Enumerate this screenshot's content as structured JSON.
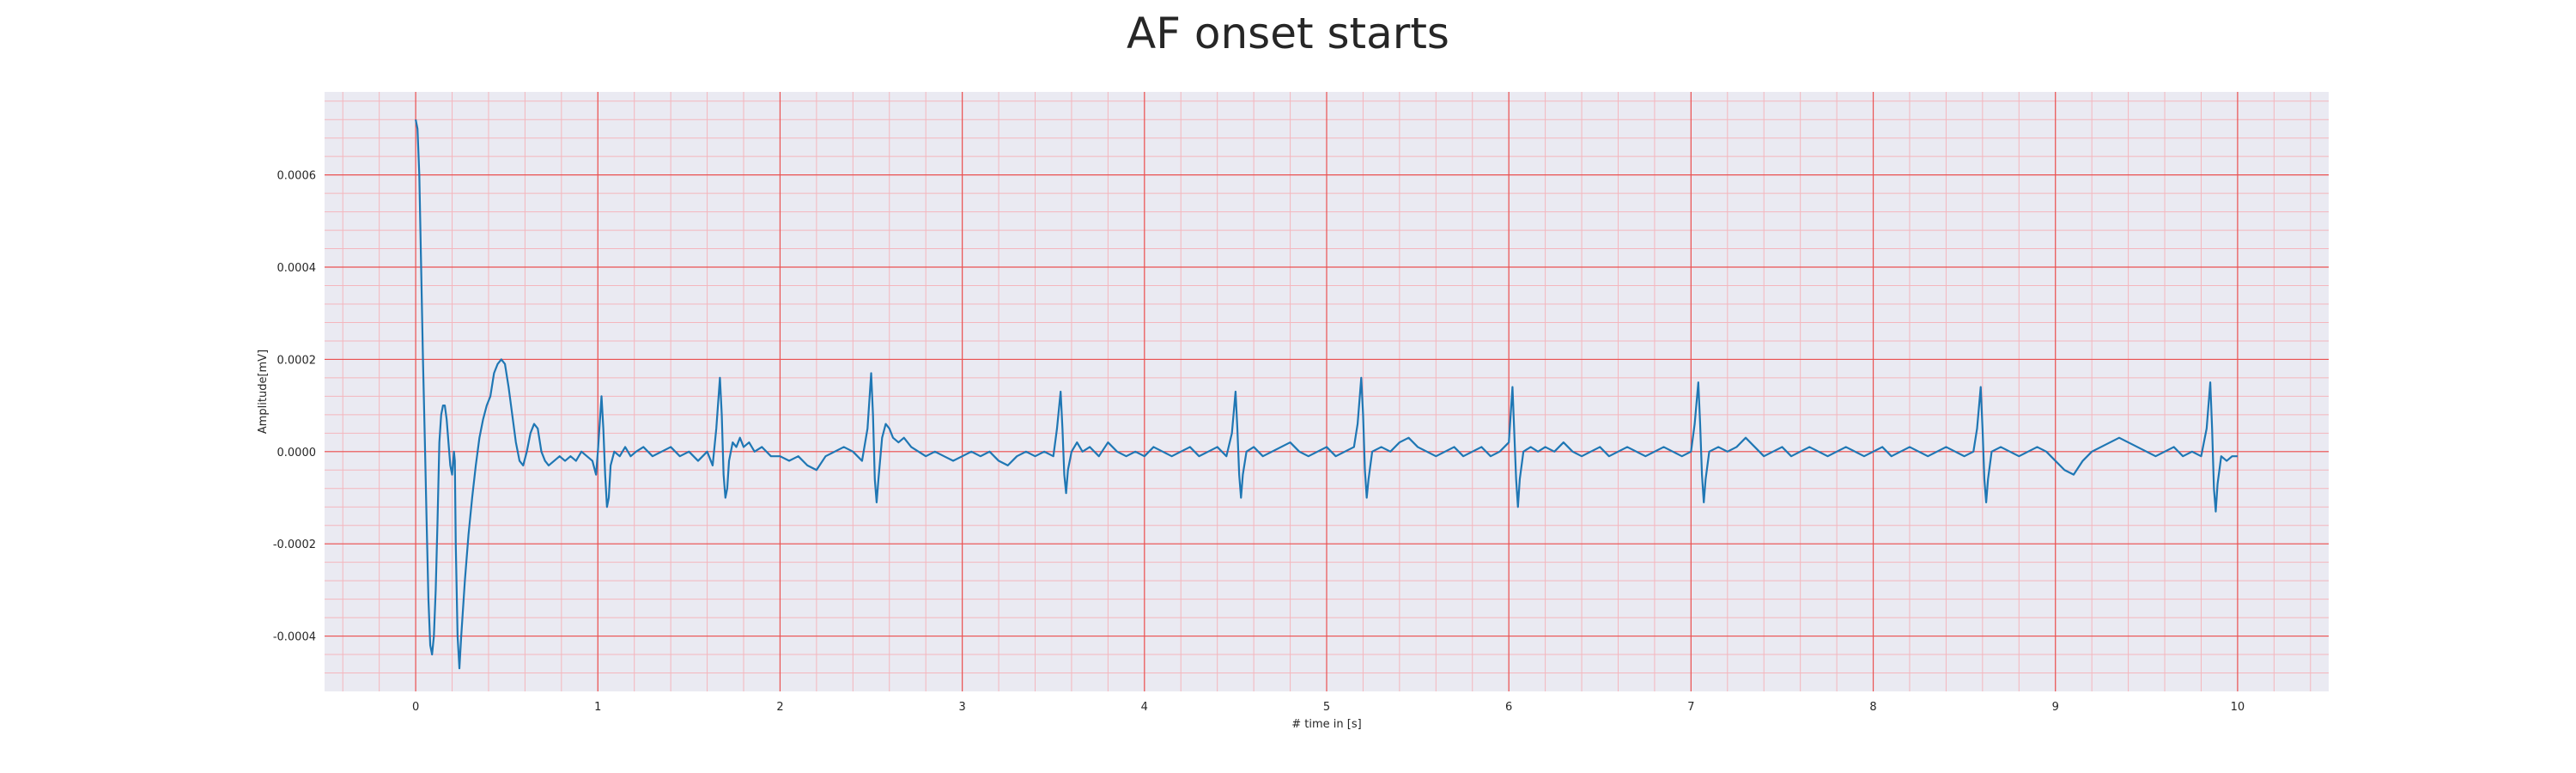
{
  "chart_data": {
    "type": "line",
    "title": "AF onset starts",
    "xlabel": "# time in [s]",
    "ylabel": "Amplitude[mV]",
    "xlim": [
      -0.5,
      10.5
    ],
    "ylim": [
      -0.00052,
      0.00078
    ],
    "x_ticks": [
      0,
      1,
      2,
      3,
      4,
      5,
      6,
      7,
      8,
      9,
      10
    ],
    "x_tick_labels": [
      "0",
      "1",
      "2",
      "3",
      "4",
      "5",
      "6",
      "7",
      "8",
      "9",
      "10"
    ],
    "y_ticks": [
      -0.0004,
      -0.0002,
      0.0,
      0.0002,
      0.0004,
      0.0006
    ],
    "y_tick_labels": [
      "-0.0004",
      "-0.0002",
      "0.0000",
      "0.0002",
      "0.0004",
      "0.0006"
    ],
    "grid": true,
    "minor_grid": true,
    "series": [
      {
        "color": "#1f77b4",
        "points": [
          [
            0.0,
            0.00072
          ],
          [
            0.01,
            0.0007
          ],
          [
            0.02,
            0.0006
          ],
          [
            0.03,
            0.0004
          ],
          [
            0.04,
            0.0002
          ],
          [
            0.05,
            3e-05
          ],
          [
            0.06,
            -0.00015
          ],
          [
            0.07,
            -0.00032
          ],
          [
            0.08,
            -0.00042
          ],
          [
            0.09,
            -0.00044
          ],
          [
            0.1,
            -0.0004
          ],
          [
            0.11,
            -0.0003
          ],
          [
            0.12,
            -0.00015
          ],
          [
            0.13,
            2e-05
          ],
          [
            0.14,
            8e-05
          ],
          [
            0.15,
            0.0001
          ],
          [
            0.16,
            0.0001
          ],
          [
            0.17,
            7e-05
          ],
          [
            0.18,
            2e-05
          ],
          [
            0.19,
            -3e-05
          ],
          [
            0.2,
            -5e-05
          ],
          [
            0.21,
            0.0
          ],
          [
            0.215,
            -2e-05
          ],
          [
            0.22,
            -0.0002
          ],
          [
            0.23,
            -0.0004
          ],
          [
            0.24,
            -0.00047
          ],
          [
            0.25,
            -0.0004
          ],
          [
            0.27,
            -0.00028
          ],
          [
            0.29,
            -0.00018
          ],
          [
            0.31,
            -0.0001
          ],
          [
            0.33,
            -3e-05
          ],
          [
            0.35,
            3e-05
          ],
          [
            0.37,
            7e-05
          ],
          [
            0.39,
            0.0001
          ],
          [
            0.41,
            0.00012
          ],
          [
            0.43,
            0.00017
          ],
          [
            0.45,
            0.00019
          ],
          [
            0.47,
            0.0002
          ],
          [
            0.49,
            0.00019
          ],
          [
            0.51,
            0.00014
          ],
          [
            0.53,
            8e-05
          ],
          [
            0.55,
            2e-05
          ],
          [
            0.57,
            -2e-05
          ],
          [
            0.59,
            -3e-05
          ],
          [
            0.61,
            0.0
          ],
          [
            0.63,
            4e-05
          ],
          [
            0.65,
            6e-05
          ],
          [
            0.67,
            5e-05
          ],
          [
            0.69,
            0.0
          ],
          [
            0.71,
            -2e-05
          ],
          [
            0.73,
            -3e-05
          ],
          [
            0.76,
            -2e-05
          ],
          [
            0.79,
            -1e-05
          ],
          [
            0.82,
            -2e-05
          ],
          [
            0.85,
            -1e-05
          ],
          [
            0.88,
            -2e-05
          ],
          [
            0.91,
            0.0
          ],
          [
            0.94,
            -1e-05
          ],
          [
            0.97,
            -2e-05
          ],
          [
            0.99,
            -5e-05
          ],
          [
            1.0,
            0.0
          ],
          [
            1.02,
            0.00012
          ],
          [
            1.03,
            5e-05
          ],
          [
            1.04,
            -5e-05
          ],
          [
            1.05,
            -0.00012
          ],
          [
            1.06,
            -0.0001
          ],
          [
            1.07,
            -3e-05
          ],
          [
            1.09,
            0.0
          ],
          [
            1.12,
            -1e-05
          ],
          [
            1.15,
            1e-05
          ],
          [
            1.18,
            -1e-05
          ],
          [
            1.21,
            0.0
          ],
          [
            1.25,
            1e-05
          ],
          [
            1.3,
            -1e-05
          ],
          [
            1.35,
            0.0
          ],
          [
            1.4,
            1e-05
          ],
          [
            1.45,
            -1e-05
          ],
          [
            1.5,
            0.0
          ],
          [
            1.55,
            -2e-05
          ],
          [
            1.6,
            0.0
          ],
          [
            1.63,
            -3e-05
          ],
          [
            1.65,
            5e-05
          ],
          [
            1.67,
            0.00016
          ],
          [
            1.68,
            8e-05
          ],
          [
            1.69,
            -5e-05
          ],
          [
            1.7,
            -0.0001
          ],
          [
            1.71,
            -8e-05
          ],
          [
            1.72,
            -2e-05
          ],
          [
            1.74,
            2e-05
          ],
          [
            1.76,
            1e-05
          ],
          [
            1.78,
            3e-05
          ],
          [
            1.8,
            1e-05
          ],
          [
            1.83,
            2e-05
          ],
          [
            1.86,
            0.0
          ],
          [
            1.9,
            1e-05
          ],
          [
            1.95,
            -1e-05
          ],
          [
            2.0,
            -1e-05
          ],
          [
            2.05,
            -2e-05
          ],
          [
            2.1,
            -1e-05
          ],
          [
            2.15,
            -3e-05
          ],
          [
            2.2,
            -4e-05
          ],
          [
            2.25,
            -1e-05
          ],
          [
            2.3,
            0.0
          ],
          [
            2.35,
            1e-05
          ],
          [
            2.4,
            0.0
          ],
          [
            2.45,
            -2e-05
          ],
          [
            2.48,
            5e-05
          ],
          [
            2.5,
            0.00017
          ],
          [
            2.51,
            8e-05
          ],
          [
            2.52,
            -6e-05
          ],
          [
            2.53,
            -0.00011
          ],
          [
            2.54,
            -6e-05
          ],
          [
            2.56,
            3e-05
          ],
          [
            2.58,
            6e-05
          ],
          [
            2.6,
            5e-05
          ],
          [
            2.62,
            3e-05
          ],
          [
            2.65,
            2e-05
          ],
          [
            2.68,
            3e-05
          ],
          [
            2.72,
            1e-05
          ],
          [
            2.76,
            0.0
          ],
          [
            2.8,
            -1e-05
          ],
          [
            2.85,
            0.0
          ],
          [
            2.9,
            -1e-05
          ],
          [
            2.95,
            -2e-05
          ],
          [
            3.0,
            -1e-05
          ],
          [
            3.05,
            0.0
          ],
          [
            3.1,
            -1e-05
          ],
          [
            3.15,
            0.0
          ],
          [
            3.2,
            -2e-05
          ],
          [
            3.25,
            -3e-05
          ],
          [
            3.3,
            -1e-05
          ],
          [
            3.35,
            0.0
          ],
          [
            3.4,
            -1e-05
          ],
          [
            3.45,
            0.0
          ],
          [
            3.5,
            -1e-05
          ],
          [
            3.52,
            5e-05
          ],
          [
            3.54,
            0.00013
          ],
          [
            3.55,
            5e-05
          ],
          [
            3.56,
            -5e-05
          ],
          [
            3.57,
            -9e-05
          ],
          [
            3.58,
            -4e-05
          ],
          [
            3.6,
            0.0
          ],
          [
            3.63,
            2e-05
          ],
          [
            3.66,
            0.0
          ],
          [
            3.7,
            1e-05
          ],
          [
            3.75,
            -1e-05
          ],
          [
            3.8,
            2e-05
          ],
          [
            3.85,
            0.0
          ],
          [
            3.9,
            -1e-05
          ],
          [
            3.95,
            0.0
          ],
          [
            4.0,
            -1e-05
          ],
          [
            4.05,
            1e-05
          ],
          [
            4.1,
            0.0
          ],
          [
            4.15,
            -1e-05
          ],
          [
            4.2,
            0.0
          ],
          [
            4.25,
            1e-05
          ],
          [
            4.3,
            -1e-05
          ],
          [
            4.35,
            0.0
          ],
          [
            4.4,
            1e-05
          ],
          [
            4.45,
            -1e-05
          ],
          [
            4.48,
            4e-05
          ],
          [
            4.5,
            0.00013
          ],
          [
            4.51,
            5e-05
          ],
          [
            4.52,
            -5e-05
          ],
          [
            4.53,
            -0.0001
          ],
          [
            4.54,
            -5e-05
          ],
          [
            4.56,
            0.0
          ],
          [
            4.6,
            1e-05
          ],
          [
            4.65,
            -1e-05
          ],
          [
            4.7,
            0.0
          ],
          [
            4.75,
            1e-05
          ],
          [
            4.8,
            2e-05
          ],
          [
            4.85,
            0.0
          ],
          [
            4.9,
            -1e-05
          ],
          [
            4.95,
            0.0
          ],
          [
            5.0,
            1e-05
          ],
          [
            5.05,
            -1e-05
          ],
          [
            5.1,
            0.0
          ],
          [
            5.15,
            1e-05
          ],
          [
            5.17,
            6e-05
          ],
          [
            5.19,
            0.00016
          ],
          [
            5.2,
            8e-05
          ],
          [
            5.21,
            -4e-05
          ],
          [
            5.22,
            -0.0001
          ],
          [
            5.23,
            -6e-05
          ],
          [
            5.25,
            0.0
          ],
          [
            5.3,
            1e-05
          ],
          [
            5.35,
            0.0
          ],
          [
            5.4,
            2e-05
          ],
          [
            5.45,
            3e-05
          ],
          [
            5.5,
            1e-05
          ],
          [
            5.55,
            0.0
          ],
          [
            5.6,
            -1e-05
          ],
          [
            5.65,
            0.0
          ],
          [
            5.7,
            1e-05
          ],
          [
            5.75,
            -1e-05
          ],
          [
            5.8,
            0.0
          ],
          [
            5.85,
            1e-05
          ],
          [
            5.9,
            -1e-05
          ],
          [
            5.95,
            0.0
          ],
          [
            6.0,
            2e-05
          ],
          [
            6.02,
            0.00014
          ],
          [
            6.03,
            4e-05
          ],
          [
            6.04,
            -6e-05
          ],
          [
            6.05,
            -0.00012
          ],
          [
            6.06,
            -6e-05
          ],
          [
            6.08,
            0.0
          ],
          [
            6.12,
            1e-05
          ],
          [
            6.16,
            0.0
          ],
          [
            6.2,
            1e-05
          ],
          [
            6.25,
            0.0
          ],
          [
            6.3,
            2e-05
          ],
          [
            6.35,
            0.0
          ],
          [
            6.4,
            -1e-05
          ],
          [
            6.45,
            0.0
          ],
          [
            6.5,
            1e-05
          ],
          [
            6.55,
            -1e-05
          ],
          [
            6.6,
            0.0
          ],
          [
            6.65,
            1e-05
          ],
          [
            6.7,
            0.0
          ],
          [
            6.75,
            -1e-05
          ],
          [
            6.8,
            0.0
          ],
          [
            6.85,
            1e-05
          ],
          [
            6.9,
            0.0
          ],
          [
            6.95,
            -1e-05
          ],
          [
            7.0,
            0.0
          ],
          [
            7.02,
            6e-05
          ],
          [
            7.04,
            0.00015
          ],
          [
            7.05,
            6e-05
          ],
          [
            7.06,
            -5e-05
          ],
          [
            7.07,
            -0.00011
          ],
          [
            7.08,
            -6e-05
          ],
          [
            7.1,
            0.0
          ],
          [
            7.15,
            1e-05
          ],
          [
            7.2,
            0.0
          ],
          [
            7.25,
            1e-05
          ],
          [
            7.3,
            3e-05
          ],
          [
            7.35,
            1e-05
          ],
          [
            7.4,
            -1e-05
          ],
          [
            7.45,
            0.0
          ],
          [
            7.5,
            1e-05
          ],
          [
            7.55,
            -1e-05
          ],
          [
            7.6,
            0.0
          ],
          [
            7.65,
            1e-05
          ],
          [
            7.7,
            0.0
          ],
          [
            7.75,
            -1e-05
          ],
          [
            7.8,
            0.0
          ],
          [
            7.85,
            1e-05
          ],
          [
            7.9,
            0.0
          ],
          [
            7.95,
            -1e-05
          ],
          [
            8.0,
            0.0
          ],
          [
            8.05,
            1e-05
          ],
          [
            8.1,
            -1e-05
          ],
          [
            8.15,
            0.0
          ],
          [
            8.2,
            1e-05
          ],
          [
            8.25,
            0.0
          ],
          [
            8.3,
            -1e-05
          ],
          [
            8.35,
            0.0
          ],
          [
            8.4,
            1e-05
          ],
          [
            8.45,
            0.0
          ],
          [
            8.5,
            -1e-05
          ],
          [
            8.55,
            0.0
          ],
          [
            8.57,
            5e-05
          ],
          [
            8.59,
            0.00014
          ],
          [
            8.6,
            5e-05
          ],
          [
            8.61,
            -6e-05
          ],
          [
            8.62,
            -0.00011
          ],
          [
            8.63,
            -6e-05
          ],
          [
            8.65,
            0.0
          ],
          [
            8.7,
            1e-05
          ],
          [
            8.75,
            0.0
          ],
          [
            8.8,
            -1e-05
          ],
          [
            8.85,
            0.0
          ],
          [
            8.9,
            1e-05
          ],
          [
            8.95,
            0.0
          ],
          [
            9.0,
            -2e-05
          ],
          [
            9.05,
            -4e-05
          ],
          [
            9.1,
            -5e-05
          ],
          [
            9.15,
            -2e-05
          ],
          [
            9.2,
            0.0
          ],
          [
            9.25,
            1e-05
          ],
          [
            9.3,
            2e-05
          ],
          [
            9.35,
            3e-05
          ],
          [
            9.4,
            2e-05
          ],
          [
            9.45,
            1e-05
          ],
          [
            9.5,
            0.0
          ],
          [
            9.55,
            -1e-05
          ],
          [
            9.6,
            0.0
          ],
          [
            9.65,
            1e-05
          ],
          [
            9.7,
            -1e-05
          ],
          [
            9.75,
            0.0
          ],
          [
            9.8,
            -1e-05
          ],
          [
            9.83,
            5e-05
          ],
          [
            9.85,
            0.00015
          ],
          [
            9.86,
            5e-05
          ],
          [
            9.87,
            -8e-05
          ],
          [
            9.88,
            -0.00013
          ],
          [
            9.89,
            -7e-05
          ],
          [
            9.91,
            -1e-05
          ],
          [
            9.94,
            -2e-05
          ],
          [
            9.97,
            -1e-05
          ],
          [
            10.0,
            -1e-05
          ]
        ]
      }
    ]
  }
}
